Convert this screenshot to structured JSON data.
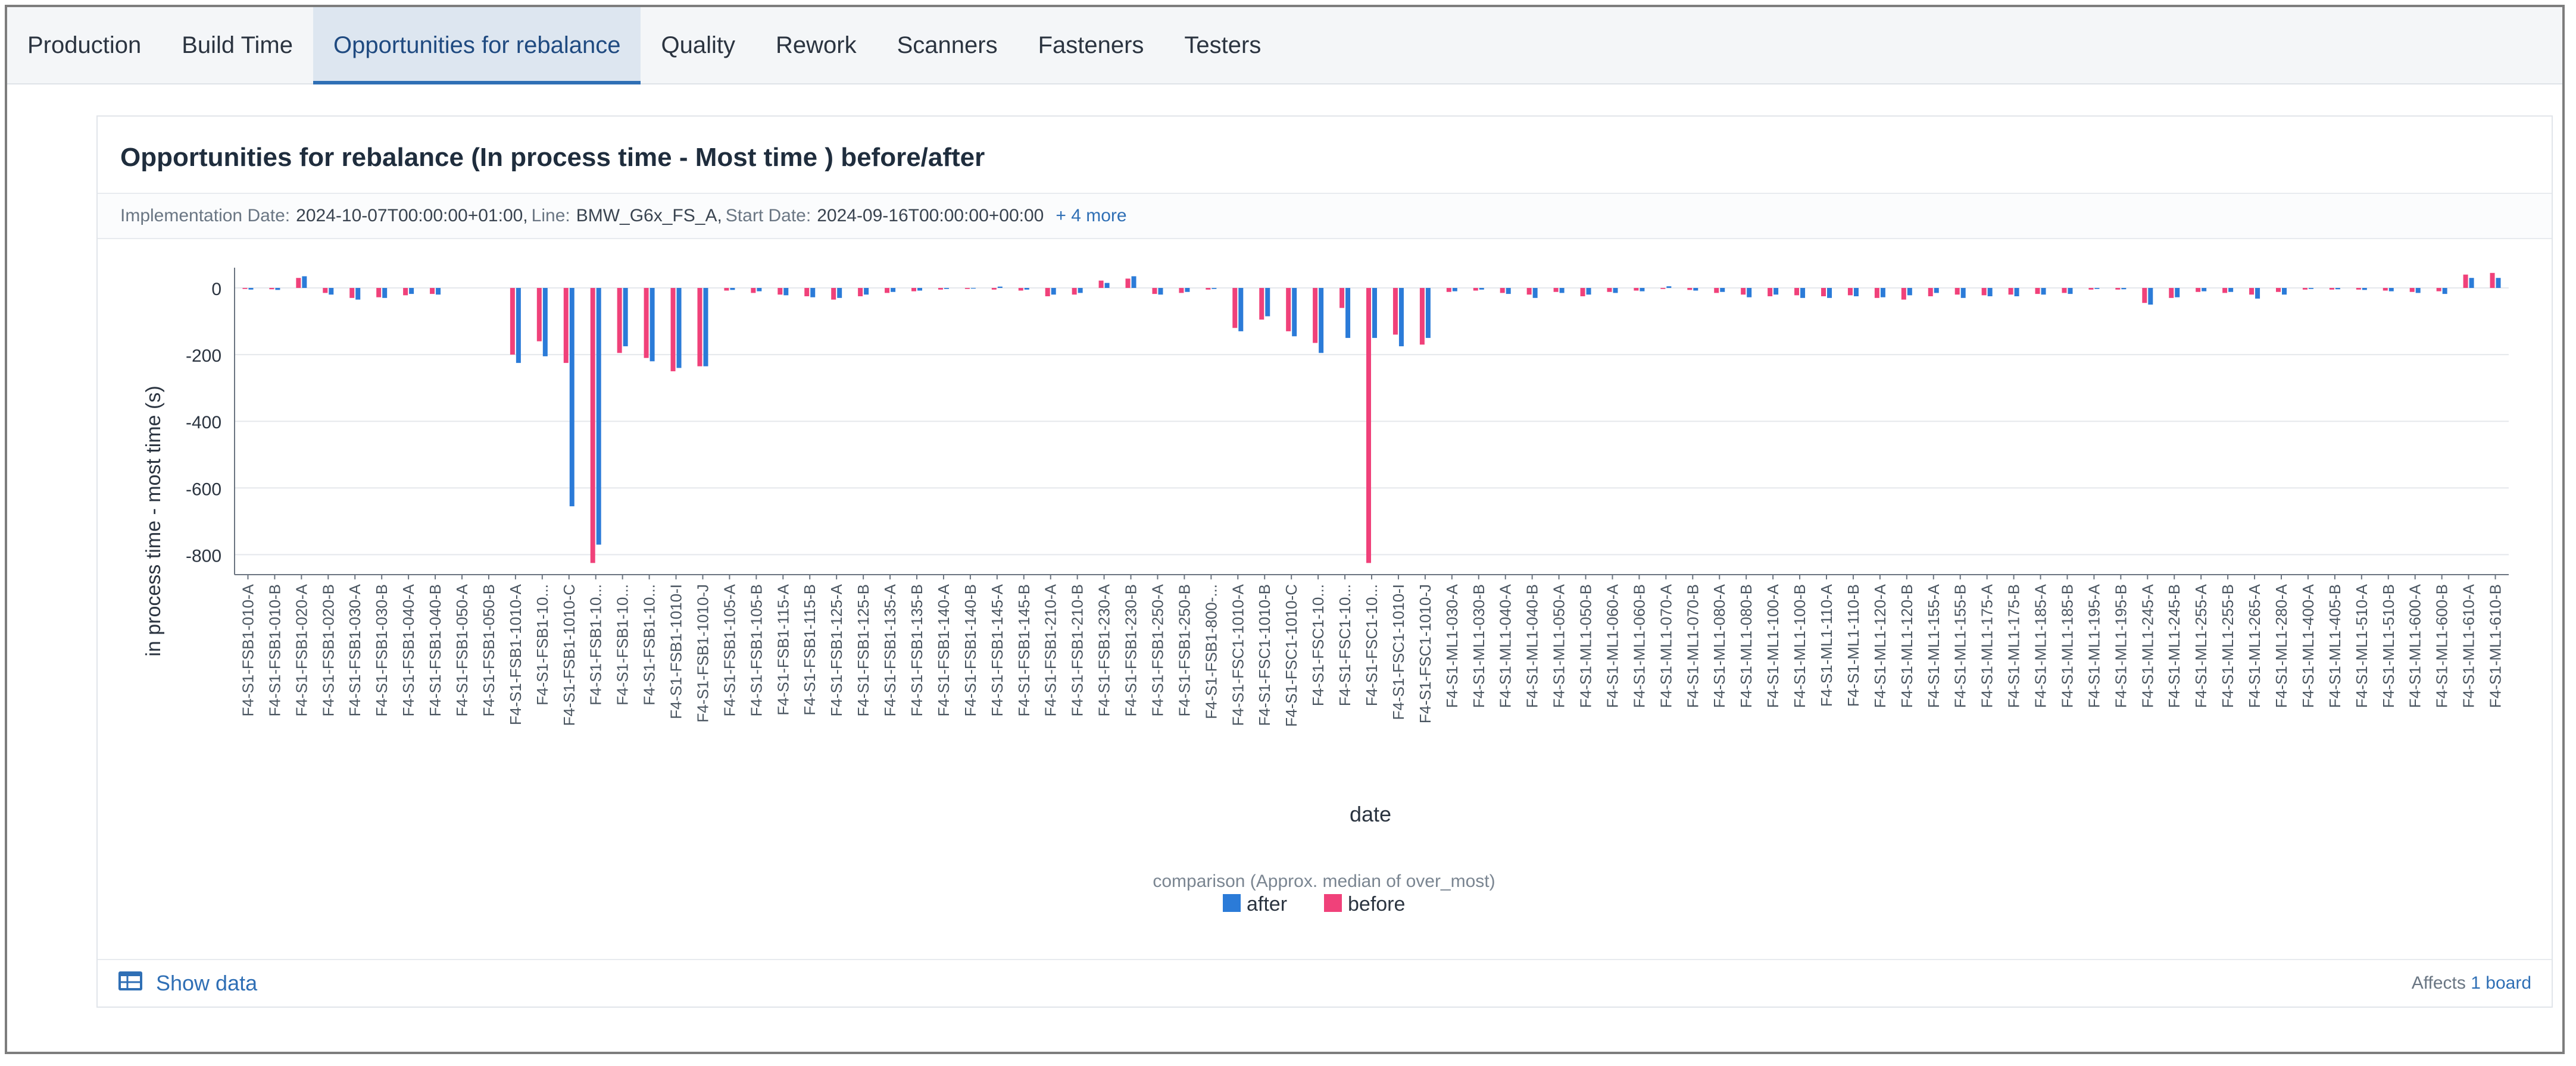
{
  "tabs": [
    {
      "label": "Production",
      "active": false
    },
    {
      "label": "Build Time",
      "active": false
    },
    {
      "label": "Opportunities for rebalance",
      "active": true
    },
    {
      "label": "Quality",
      "active": false
    },
    {
      "label": "Rework",
      "active": false
    },
    {
      "label": "Scanners",
      "active": false
    },
    {
      "label": "Fasteners",
      "active": false
    },
    {
      "label": "Testers",
      "active": false
    }
  ],
  "card": {
    "title": "Opportunities for rebalance (In process time - Most time ) before/after",
    "filters": [
      {
        "key": "Implementation Date:",
        "value": "2024-10-07T00:00:00+01:00,"
      },
      {
        "key": "Line:",
        "value": "BMW_G6x_FS_A,"
      },
      {
        "key": "Start Date:",
        "value": "2024-09-16T00:00:00+00:00"
      }
    ],
    "more": "+ 4 more"
  },
  "footer": {
    "show_data": "Show data",
    "affects_prefix": "Affects",
    "affects_link": "1 board"
  },
  "chart_data": {
    "type": "bar",
    "xlabel": "date",
    "ylabel": "in process time - most time (s)",
    "ylim": [
      -860,
      50
    ],
    "yticks": [
      0,
      -200,
      -400,
      -600,
      -800
    ],
    "grid": true,
    "legend_title": "comparison (Approx. median of over_most)",
    "legend_position": "bottom-center",
    "categories": [
      "F4-S1-FSB1-010-A",
      "F4-S1-FSB1-010-B",
      "F4-S1-FSB1-020-A",
      "F4-S1-FSB1-020-B",
      "F4-S1-FSB1-030-A",
      "F4-S1-FSB1-030-B",
      "F4-S1-FSB1-040-A",
      "F4-S1-FSB1-040-B",
      "F4-S1-FSB1-050-A",
      "F4-S1-FSB1-050-B",
      "F4-S1-FSB1-1010-A",
      "F4-S1-FSB1-10...",
      "F4-S1-FSB1-1010-C",
      "F4-S1-FSB1-10...",
      "F4-S1-FSB1-10...",
      "F4-S1-FSB1-10...",
      "F4-S1-FSB1-1010-I",
      "F4-S1-FSB1-1010-J",
      "F4-S1-FSB1-105-A",
      "F4-S1-FSB1-105-B",
      "F4-S1-FSB1-115-A",
      "F4-S1-FSB1-115-B",
      "F4-S1-FSB1-125-A",
      "F4-S1-FSB1-125-B",
      "F4-S1-FSB1-135-A",
      "F4-S1-FSB1-135-B",
      "F4-S1-FSB1-140-A",
      "F4-S1-FSB1-140-B",
      "F4-S1-FSB1-145-A",
      "F4-S1-FSB1-145-B",
      "F4-S1-FSB1-210-A",
      "F4-S1-FSB1-210-B",
      "F4-S1-FSB1-230-A",
      "F4-S1-FSB1-230-B",
      "F4-S1-FSB1-250-A",
      "F4-S1-FSB1-250-B",
      "F4-S1-FSB1-800-...",
      "F4-S1-FSC1-1010-A",
      "F4-S1-FSC1-1010-B",
      "F4-S1-FSC1-1010-C",
      "F4-S1-FSC1-10...",
      "F4-S1-FSC1-10...",
      "F4-S1-FSC1-10...",
      "F4-S1-FSC1-1010-I",
      "F4-S1-FSC1-1010-J",
      "F4-S1-ML1-030-A",
      "F4-S1-ML1-030-B",
      "F4-S1-ML1-040-A",
      "F4-S1-ML1-040-B",
      "F4-S1-ML1-050-A",
      "F4-S1-ML1-050-B",
      "F4-S1-ML1-060-A",
      "F4-S1-ML1-060-B",
      "F4-S1-ML1-070-A",
      "F4-S1-ML1-070-B",
      "F4-S1-ML1-080-A",
      "F4-S1-ML1-080-B",
      "F4-S1-ML1-100-A",
      "F4-S1-ML1-100-B",
      "F4-S1-ML1-110-A",
      "F4-S1-ML1-110-B",
      "F4-S1-ML1-120-A",
      "F4-S1-ML1-120-B",
      "F4-S1-ML1-155-A",
      "F4-S1-ML1-155-B",
      "F4-S1-ML1-175-A",
      "F4-S1-ML1-175-B",
      "F4-S1-ML1-185-A",
      "F4-S1-ML1-185-B",
      "F4-S1-ML1-195-A",
      "F4-S1-ML1-195-B",
      "F4-S1-ML1-245-A",
      "F4-S1-ML1-245-B",
      "F4-S1-ML1-255-A",
      "F4-S1-ML1-255-B",
      "F4-S1-ML1-265-A",
      "F4-S1-ML1-280-A",
      "F4-S1-ML1-400-A",
      "F4-S1-ML1-405-B",
      "F4-S1-ML1-510-A",
      "F4-S1-ML1-510-B",
      "F4-S1-ML1-600-A",
      "F4-S1-ML1-600-B",
      "F4-S1-ML1-610-A",
      "F4-S1-ML1-610-B"
    ],
    "series": [
      {
        "name": "before",
        "color": "#f0417a",
        "values": [
          -3,
          -4,
          30,
          -15,
          -30,
          -28,
          -22,
          -18,
          0,
          0,
          -200,
          -160,
          -225,
          -825,
          -195,
          -210,
          -250,
          -235,
          -8,
          -15,
          -20,
          -25,
          -35,
          -25,
          -15,
          -10,
          -5,
          -3,
          -5,
          -8,
          -25,
          -20,
          22,
          28,
          -18,
          -15,
          -5,
          -120,
          -95,
          -130,
          -165,
          -60,
          -825,
          -140,
          -170,
          -12,
          -8,
          -15,
          -20,
          -12,
          -25,
          -12,
          -8,
          -3,
          -6,
          -15,
          -20,
          -25,
          -22,
          -25,
          -22,
          -30,
          -35,
          -25,
          -20,
          -22,
          -20,
          -18,
          -15,
          -5,
          -5,
          -45,
          -30,
          -12,
          -15,
          -20,
          -12,
          -5,
          -5,
          -5,
          -8,
          -12,
          -10,
          40,
          45
        ]
      },
      {
        "name": "after",
        "color": "#2b7bd8",
        "values": [
          -5,
          -6,
          35,
          -20,
          -35,
          -30,
          -18,
          -20,
          0,
          0,
          -225,
          -205,
          -655,
          -770,
          -175,
          -220,
          -240,
          -235,
          -6,
          -10,
          -22,
          -28,
          -30,
          -20,
          -12,
          -8,
          -3,
          -2,
          4,
          -5,
          -20,
          -15,
          15,
          35,
          -20,
          -12,
          -3,
          -130,
          -85,
          -145,
          -195,
          -150,
          -150,
          -175,
          -150,
          -10,
          -5,
          -18,
          -30,
          -15,
          -20,
          -15,
          -10,
          5,
          -8,
          -12,
          -28,
          -20,
          -30,
          -30,
          -25,
          -28,
          -22,
          -15,
          -30,
          -25,
          -25,
          -20,
          -18,
          -3,
          -4,
          -50,
          -28,
          -10,
          -12,
          -32,
          -20,
          -3,
          -4,
          -6,
          -10,
          -15,
          -18,
          30,
          30
        ]
      }
    ]
  }
}
